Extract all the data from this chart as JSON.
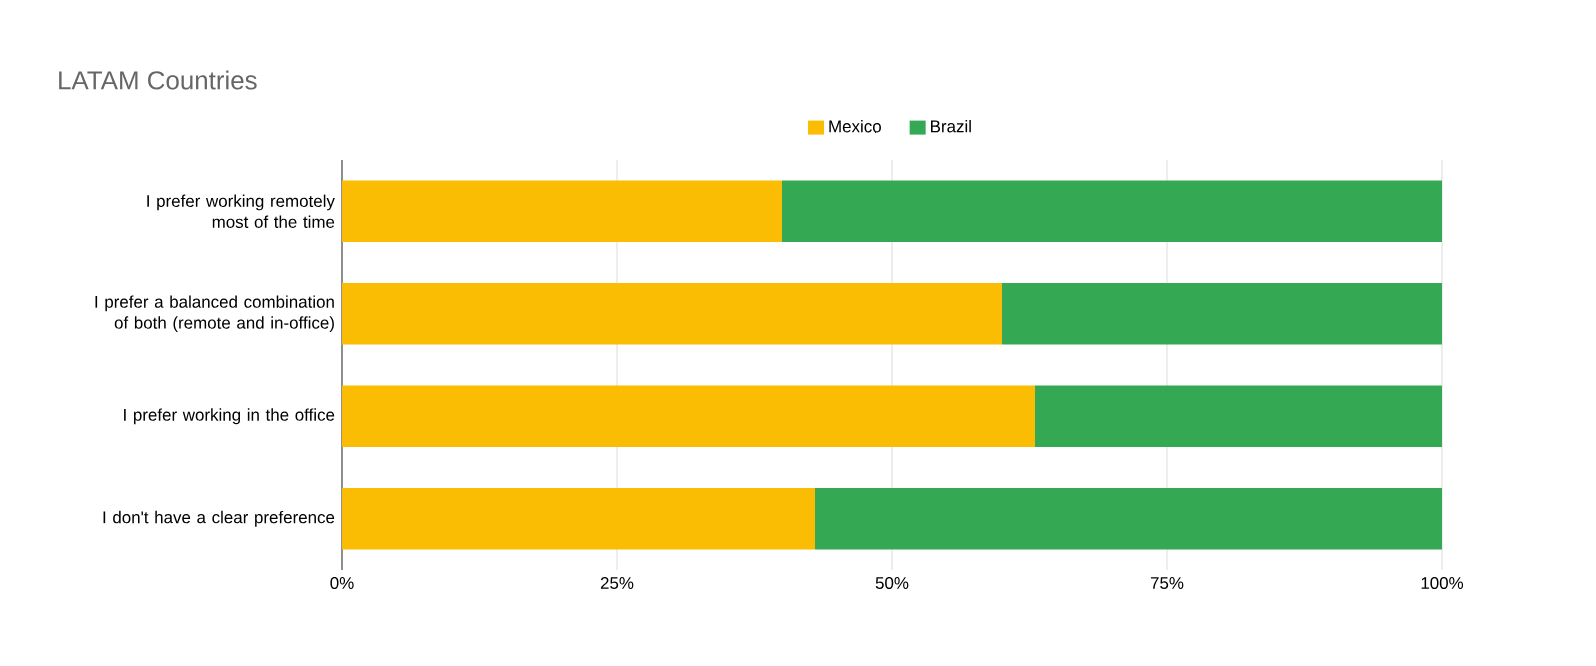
{
  "chart_data": {
    "type": "bar",
    "title": "LATAM Countries",
    "orientation": "horizontal",
    "stacked": true,
    "categories": [
      "I prefer working remotely most of the time",
      "I prefer a balanced combination of both (remote and in-office)",
      "I prefer working in the office",
      "I don't have a clear preference"
    ],
    "series": [
      {
        "name": "Mexico",
        "color": "#fbbc04",
        "values": [
          40,
          60,
          63,
          43
        ]
      },
      {
        "name": "Brazil",
        "color": "#34a853",
        "values": [
          60,
          40,
          37,
          57
        ]
      }
    ],
    "xlim": [
      0,
      100
    ],
    "xticks": [
      {
        "value": 0,
        "label": "0%"
      },
      {
        "value": 25,
        "label": "25%"
      },
      {
        "value": 50,
        "label": "50%"
      },
      {
        "value": 75,
        "label": "75%"
      },
      {
        "value": 100,
        "label": "100%"
      }
    ],
    "grid": "x",
    "legend": "top"
  }
}
